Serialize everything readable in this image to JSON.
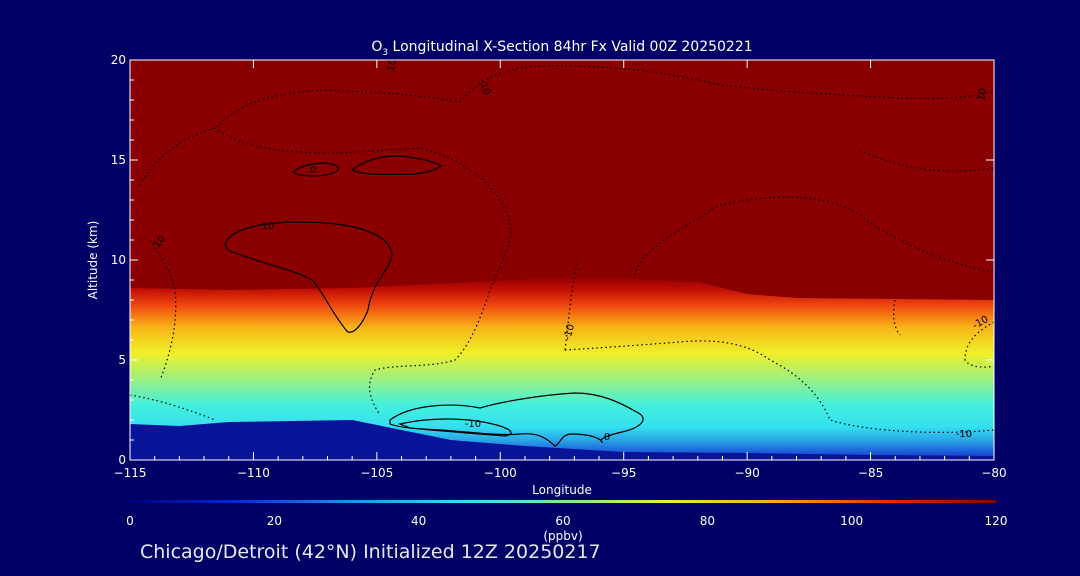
{
  "chart_data": {
    "type": "heatmap",
    "title_pre": "O",
    "title_sub": "3",
    "title_post": " Longitudinal X-Section 84hr  Fx Valid 00Z 20250221",
    "xlabel": "Longitude",
    "ylabel": "Altitude (km)",
    "xlim": [
      -115,
      -80
    ],
    "ylim": [
      0,
      20
    ],
    "x_ticks": [
      -115,
      -110,
      -105,
      -100,
      -95,
      -90,
      -85,
      -80
    ],
    "x_tick_labels": [
      "−115",
      "−110",
      "−105",
      "−100",
      "−95",
      "−90",
      "−85",
      "−80"
    ],
    "y_ticks": [
      0,
      5,
      10,
      15,
      20
    ],
    "y_tick_labels": [
      "0",
      "5",
      "10",
      "15",
      "20"
    ],
    "colorbar": {
      "label": "(ppbv)",
      "range": [
        0,
        120
      ],
      "ticks": [
        0,
        20,
        40,
        60,
        80,
        100,
        120
      ],
      "tick_labels": [
        "0",
        "20",
        "40",
        "60",
        "80",
        "100",
        "120"
      ]
    },
    "ozone_field": {
      "stratosphere_value_ppbv": 120,
      "surface_value_ppbv": 20,
      "tropopause_altitude_km": [
        [
          -115,
          8.6
        ],
        [
          -111,
          8.5
        ],
        [
          -106,
          8.6
        ],
        [
          -101,
          8.9
        ],
        [
          -98,
          9.1
        ],
        [
          -96,
          9.2
        ],
        [
          -94,
          9.0
        ],
        [
          -92,
          8.9
        ],
        [
          -90,
          8.3
        ],
        [
          -88,
          8.1
        ],
        [
          -80,
          8.0
        ]
      ],
      "terrain_km": [
        [
          -115,
          1.8
        ],
        [
          -113,
          1.7
        ],
        [
          -111,
          1.9
        ],
        [
          -106,
          2.0
        ],
        [
          -104,
          1.5
        ],
        [
          -102,
          1.0
        ],
        [
          -99,
          0.7
        ],
        [
          -95,
          0.4
        ],
        [
          -90,
          0.35
        ],
        [
          -85,
          0.25
        ],
        [
          -80,
          0.2
        ]
      ]
    },
    "contour_labels": [
      "10",
      "-10",
      "-10",
      "10",
      "0",
      "-10",
      "0",
      "-10",
      "10",
      "-10",
      "-10"
    ],
    "subtitle": "Chicago/Detroit (42°N) Initialized 12Z 20250217"
  }
}
